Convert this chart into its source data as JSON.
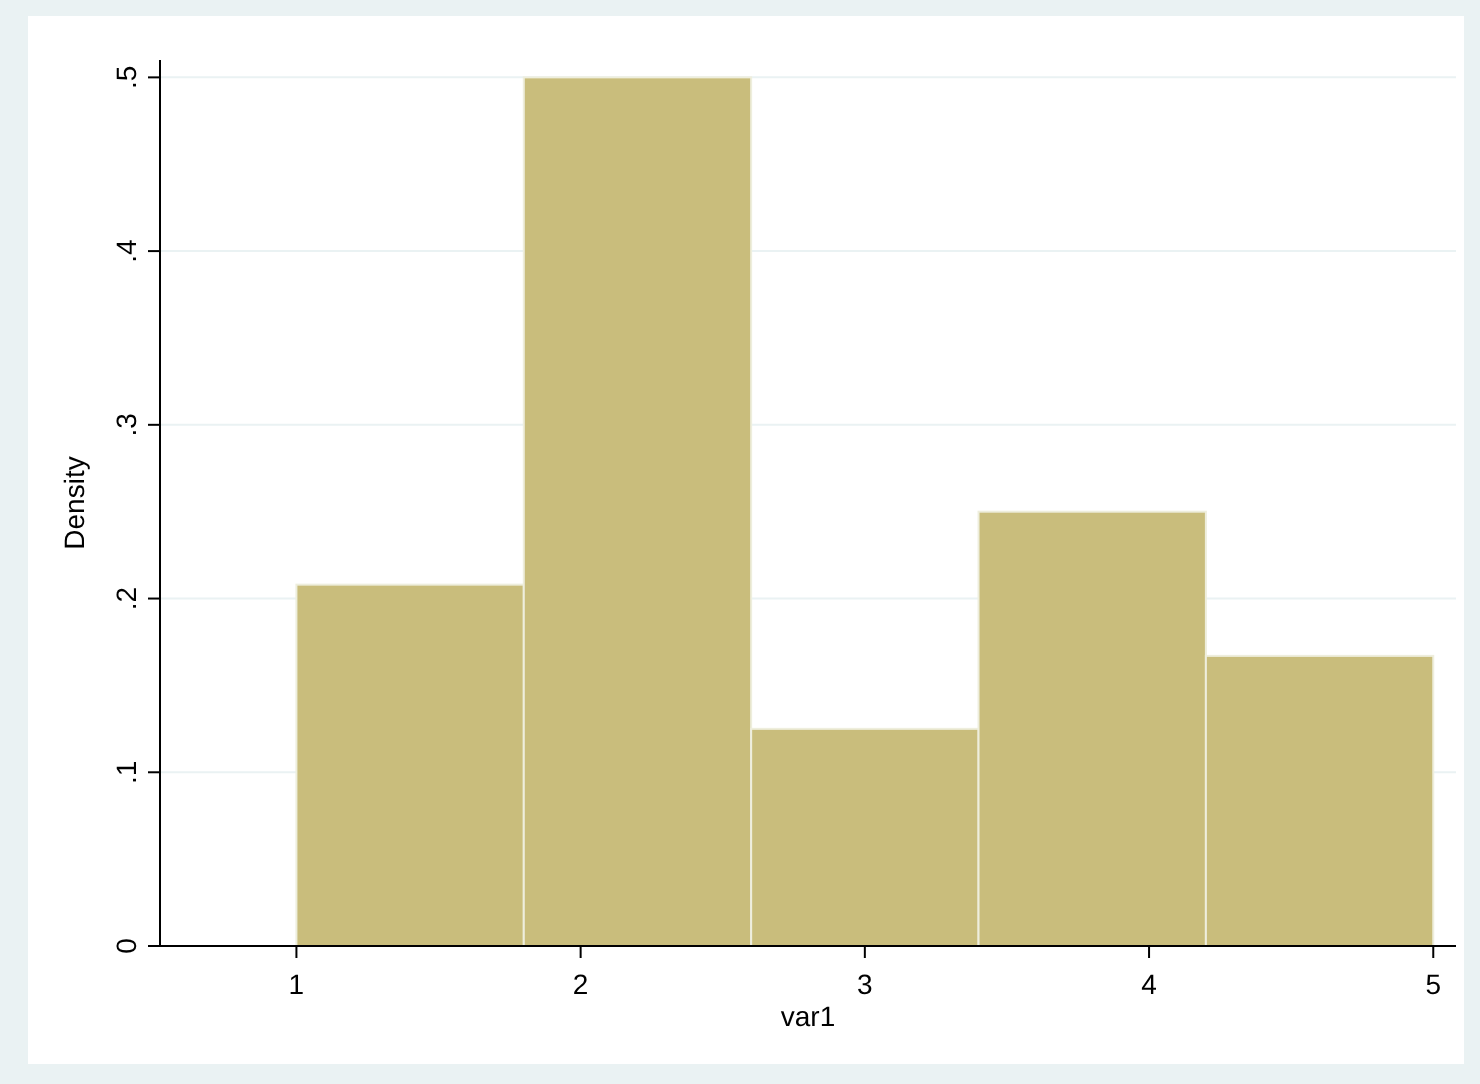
{
  "chart_data": {
    "type": "histogram",
    "xlabel": "var1",
    "ylabel": "Density",
    "bins": [
      1,
      1.8,
      2.6,
      3.4,
      4.2,
      5
    ],
    "values": [
      0.208,
      0.5,
      0.125,
      0.25,
      0.167
    ],
    "color": "#c9bd7c",
    "xlim": [
      0.52,
      5.08
    ],
    "ylim": [
      0,
      0.51
    ],
    "xticks": [
      1,
      2,
      3,
      4,
      5
    ],
    "yticks": [
      {
        "value": 0,
        "label": "0"
      },
      {
        "value": 0.1,
        "label": ".1"
      },
      {
        "value": 0.2,
        "label": ".2"
      },
      {
        "value": 0.3,
        "label": ".3"
      },
      {
        "value": 0.4,
        "label": ".4"
      },
      {
        "value": 0.5,
        "label": ".5"
      }
    ],
    "grid": "y"
  }
}
